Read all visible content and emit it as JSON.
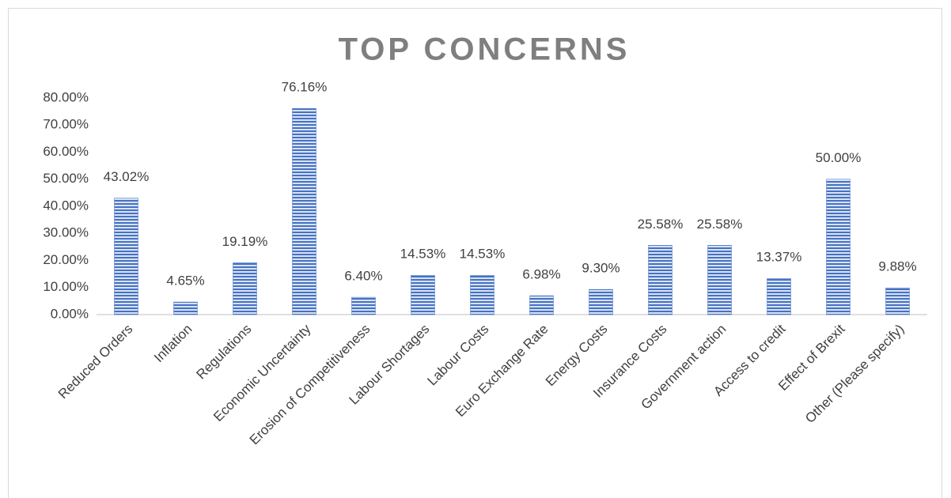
{
  "chart_data": {
    "type": "bar",
    "title": "TOP CONCERNS",
    "categories": [
      "Reduced Orders",
      "Inflation",
      "Regulations",
      "Economic Uncertainty",
      "Erosion of Competitiveness",
      "Labour Shortages",
      "Labour Costs",
      "Euro Exchange Rate",
      "Energy Costs",
      "Insurance Costs",
      "Government action",
      "Access to credit",
      "Effect of Brexit",
      "Other (Please specify)"
    ],
    "values": [
      43.02,
      4.65,
      19.19,
      76.16,
      6.4,
      14.53,
      14.53,
      6.98,
      9.3,
      25.58,
      25.58,
      13.37,
      50.0,
      9.88
    ],
    "value_labels": [
      "43.02%",
      "4.65%",
      "19.19%",
      "76.16%",
      "6.40%",
      "14.53%",
      "14.53%",
      "6.98%",
      "9.30%",
      "25.58%",
      "25.58%",
      "13.37%",
      "50.00%",
      "9.88%"
    ],
    "color": "#4472c4",
    "ylim": [
      0,
      80
    ],
    "yticks": [
      {
        "value": 0,
        "label": "0.00%"
      },
      {
        "value": 10,
        "label": "10.00%"
      },
      {
        "value": 20,
        "label": "20.00%"
      },
      {
        "value": 30,
        "label": "30.00%"
      },
      {
        "value": 40,
        "label": "40.00%"
      },
      {
        "value": 50,
        "label": "50.00%"
      },
      {
        "value": 60,
        "label": "60.00%"
      },
      {
        "value": 70,
        "label": "70.00%"
      },
      {
        "value": 80,
        "label": "80.00%"
      }
    ],
    "grid": false
  }
}
